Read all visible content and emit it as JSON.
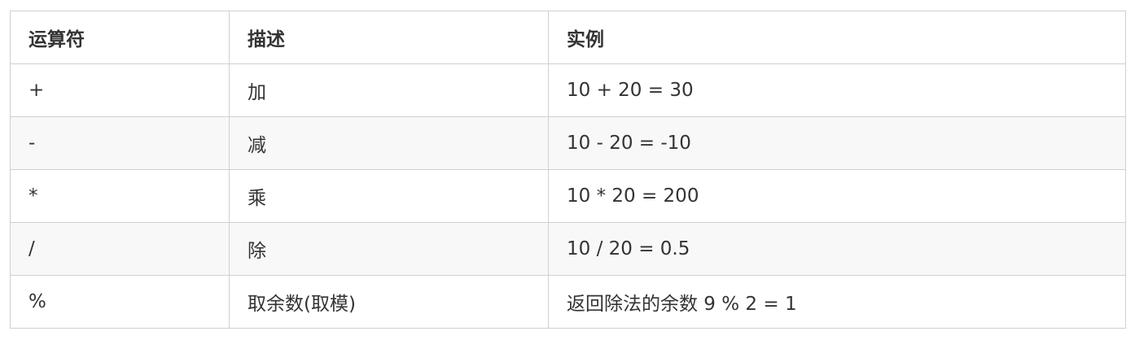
{
  "table": {
    "headers": [
      "运算符",
      "描述",
      "实例"
    ],
    "rows": [
      [
        "+",
        "加",
        "10 + 20 = 30"
      ],
      [
        "-",
        "减",
        "10 - 20 = -10"
      ],
      [
        "*",
        "乘",
        "10 * 20 = 200"
      ],
      [
        "/",
        "除",
        "10 / 20 = 0.5"
      ],
      [
        "%",
        "取余数(取模)",
        "返回除法的余数 9 % 2 = 1"
      ]
    ]
  }
}
